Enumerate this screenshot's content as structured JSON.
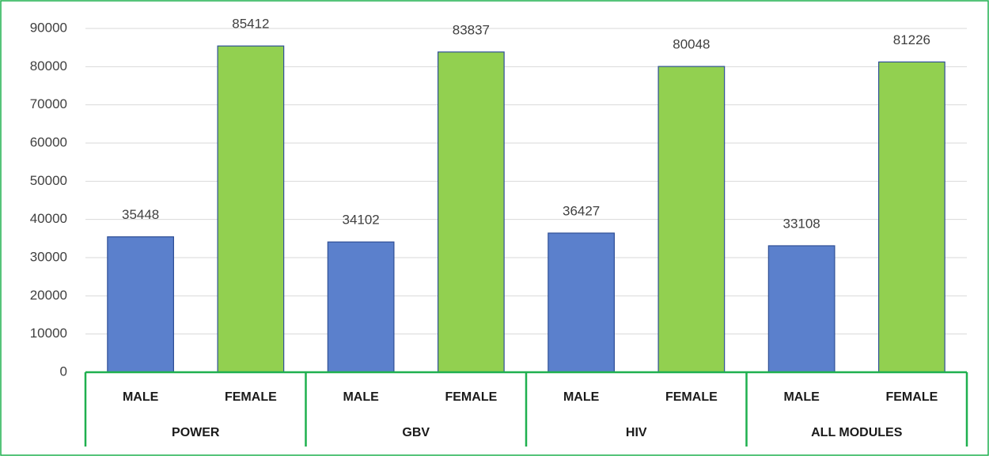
{
  "chart_data": {
    "type": "bar",
    "groups": [
      "POWER",
      "GBV",
      "HIV",
      "ALL MODULES"
    ],
    "categories": [
      "MALE",
      "FEMALE",
      "MALE",
      "FEMALE",
      "MALE",
      "FEMALE",
      "MALE",
      "FEMALE"
    ],
    "values": [
      35448,
      85412,
      34102,
      83837,
      36427,
      80048,
      33108,
      81226
    ],
    "colors": [
      "#5b80cc",
      "#92d050",
      "#5b80cc",
      "#92d050",
      "#5b80cc",
      "#92d050",
      "#5b80cc",
      "#92d050"
    ],
    "bar_edge_color": "#2f4f96",
    "axis_color": "#1fb04f",
    "ylim": [
      0,
      90000
    ],
    "yticks": [
      0,
      10000,
      20000,
      30000,
      40000,
      50000,
      60000,
      70000,
      80000,
      90000
    ],
    "grid": true,
    "data_labels": true
  }
}
